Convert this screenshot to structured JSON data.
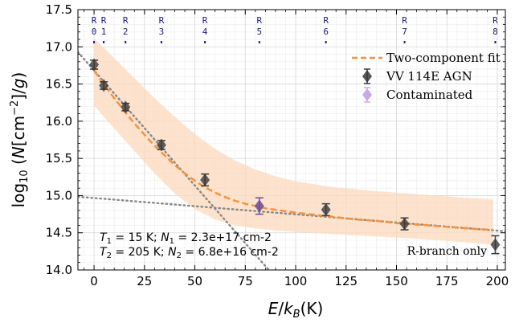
{
  "chart_data": {
    "type": "scatter",
    "xlabel": "E/k_B(K)",
    "ylabel": "log10 (N[cm^-2]/g)",
    "xlim": [
      -8,
      204
    ],
    "ylim": [
      14.0,
      17.5
    ],
    "xticks": [
      0,
      25,
      50,
      75,
      100,
      125,
      150,
      175,
      200
    ],
    "xtick_labels": [
      "0",
      "25",
      "50",
      "75",
      "100",
      "125",
      "150",
      "175",
      "200"
    ],
    "yticks": [
      14.0,
      14.5,
      15.0,
      15.5,
      16.0,
      16.5,
      17.0,
      17.5
    ],
    "ytick_labels": [
      "14.0",
      "14.5",
      "15.0",
      "15.5",
      "16.0",
      "16.5",
      "17.0",
      "17.5"
    ],
    "grid": true,
    "legend_position": "top-right",
    "series": [
      {
        "name": "VV 114E AGN",
        "color": "#3a3a3a",
        "marker": "diamond",
        "points": [
          {
            "x": 0.0,
            "y": 16.76,
            "err": 0.06
          },
          {
            "x": 4.8,
            "y": 16.48,
            "err": 0.05
          },
          {
            "x": 15.6,
            "y": 16.19,
            "err": 0.05
          },
          {
            "x": 33.4,
            "y": 15.68,
            "err": 0.06
          },
          {
            "x": 55.0,
            "y": 15.21,
            "err": 0.08
          },
          {
            "x": 115.0,
            "y": 14.81,
            "err": 0.08
          },
          {
            "x": 154.0,
            "y": 14.62,
            "err": 0.08
          },
          {
            "x": 199.0,
            "y": 14.34,
            "err": 0.12
          }
        ]
      },
      {
        "name": "Contaminated",
        "color": "#6b4c9a",
        "marker": "diamond",
        "points": [
          {
            "x": 82.0,
            "y": 14.86,
            "err": 0.11
          }
        ]
      }
    ],
    "fit": {
      "name": "Two-component fit",
      "color": "#f5923e",
      "x": [
        0,
        5,
        10,
        15,
        20,
        25,
        30,
        35,
        40,
        45,
        50,
        55,
        60,
        65,
        70,
        75,
        80,
        85,
        90,
        95,
        100,
        110,
        120,
        130,
        140,
        150,
        160,
        170,
        180,
        190,
        198
      ],
      "y": [
        16.68,
        16.49,
        16.31,
        16.14,
        15.97,
        15.82,
        15.67,
        15.54,
        15.41,
        15.3,
        15.2,
        15.11,
        15.04,
        14.98,
        14.93,
        14.89,
        14.86,
        14.83,
        14.81,
        14.79,
        14.77,
        14.74,
        14.71,
        14.68,
        14.66,
        14.63,
        14.61,
        14.59,
        14.57,
        14.55,
        14.54
      ]
    },
    "uncertainty_band": {
      "color": "#fcd9bc",
      "x": [
        0,
        10,
        20,
        30,
        40,
        50,
        60,
        70,
        80,
        90,
        100,
        120,
        140,
        160,
        180,
        198
      ],
      "y_upper": [
        17.12,
        16.85,
        16.58,
        16.31,
        16.06,
        15.83,
        15.63,
        15.47,
        15.35,
        15.26,
        15.19,
        15.11,
        15.06,
        15.02,
        14.98,
        14.95
      ],
      "y_lower": [
        16.21,
        15.9,
        15.6,
        15.3,
        15.03,
        14.82,
        14.68,
        14.6,
        14.56,
        14.53,
        14.51,
        14.48,
        14.45,
        14.42,
        14.38,
        14.34
      ]
    },
    "component_lines": [
      {
        "name": "cold",
        "color": "#888888",
        "style": "dotted",
        "x": [
          -8,
          87
        ],
        "y": [
          16.93,
          13.99
        ]
      },
      {
        "name": "warm",
        "color": "#888888",
        "style": "dotted",
        "x": [
          -8,
          204
        ],
        "y": [
          14.985,
          14.52
        ]
      }
    ],
    "annotations": {
      "line1": "T_1 = 15 K; N_1 = 2.3e+17 cm-2",
      "line2": "T_2 = 205 K; N_2 = 6.8e+16 cm-2",
      "corner": "R-branch only"
    },
    "r_labels": [
      {
        "x": 0.0,
        "letter": "R",
        "index": "0"
      },
      {
        "x": 4.8,
        "letter": "R",
        "index": "1"
      },
      {
        "x": 15.6,
        "letter": "R",
        "index": "2"
      },
      {
        "x": 33.4,
        "letter": "R",
        "index": "3"
      },
      {
        "x": 55.0,
        "letter": "R",
        "index": "4"
      },
      {
        "x": 82.0,
        "letter": "R",
        "index": "5"
      },
      {
        "x": 115.0,
        "letter": "R",
        "index": "6"
      },
      {
        "x": 154.0,
        "letter": "R",
        "index": "7"
      },
      {
        "x": 199.0,
        "letter": "R",
        "index": "8"
      }
    ]
  }
}
